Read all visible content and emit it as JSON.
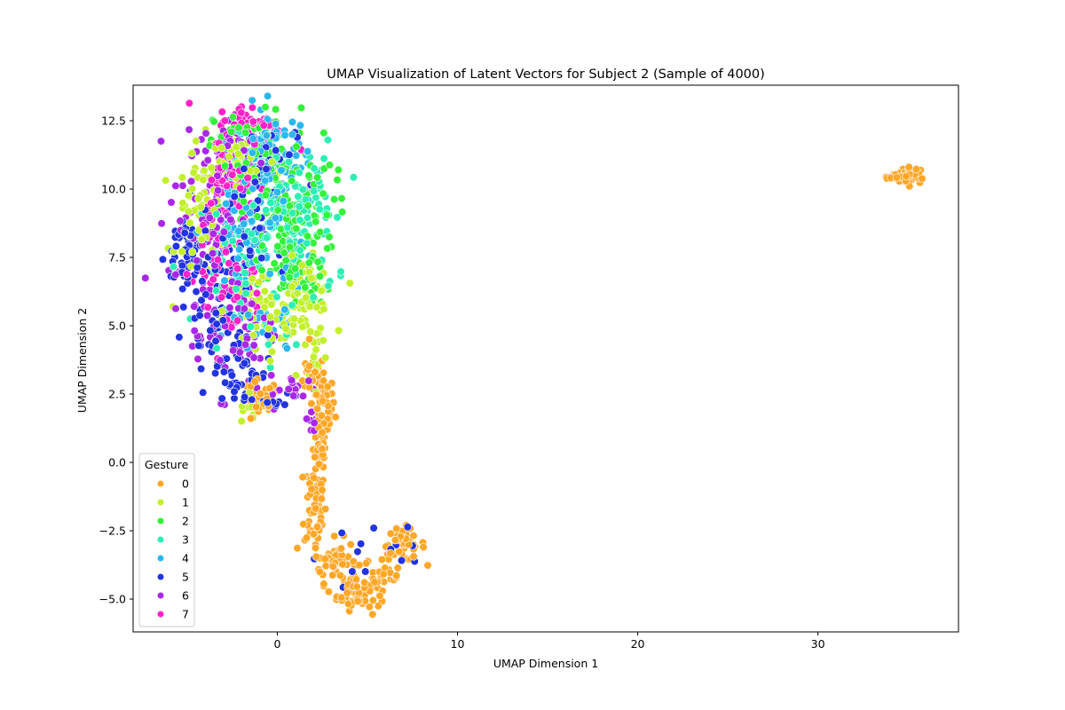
{
  "chart_data": {
    "type": "scatter",
    "title": "UMAP Visualization of Latent Vectors for Subject 2 (Sample of 4000)",
    "xlabel": "UMAP Dimension 1",
    "ylabel": "UMAP Dimension 2",
    "xlim": [
      -8,
      37.8
    ],
    "ylim": [
      -6.2,
      13.8
    ],
    "xticks": [
      0,
      10,
      20,
      30
    ],
    "yticks": [
      -5.0,
      -2.5,
      0.0,
      2.5,
      5.0,
      7.5,
      10.0,
      12.5
    ],
    "xtick_labels": [
      "0",
      "10",
      "20",
      "30"
    ],
    "ytick_labels": [
      "−5.0",
      "−2.5",
      "0.0",
      "2.5",
      "5.0",
      "7.5",
      "10.0",
      "12.5"
    ],
    "grid": false,
    "legend": {
      "title": "Gesture",
      "placement": "lower-left"
    },
    "series": [
      {
        "name": "0",
        "color": "#ffa726",
        "clusters": [
          {
            "cx": 35.2,
            "cy": 10.5,
            "sx": 0.4,
            "sy": 0.15,
            "n": 40
          },
          {
            "cx": 34.3,
            "cy": 10.45,
            "sx": 0.3,
            "sy": 0.08,
            "n": 10
          },
          {
            "cx": 2.5,
            "cy": 2.0,
            "sx": 0.35,
            "sy": 0.6,
            "n": 50
          },
          {
            "cx": 2.1,
            "cy": -1.5,
            "sx": 0.3,
            "sy": 0.9,
            "n": 60
          },
          {
            "cx": 3.2,
            "cy": -3.6,
            "sx": 0.6,
            "sy": 0.4,
            "n": 50
          },
          {
            "cx": 4.3,
            "cy": -4.8,
            "sx": 0.5,
            "sy": 0.3,
            "n": 50
          },
          {
            "cx": 5.8,
            "cy": -4.2,
            "sx": 0.5,
            "sy": 0.4,
            "n": 30
          },
          {
            "cx": 7.0,
            "cy": -3.0,
            "sx": 0.6,
            "sy": 0.3,
            "n": 45
          },
          {
            "cx": 2.4,
            "cy": 0.5,
            "sx": 0.2,
            "sy": 0.5,
            "n": 25
          },
          {
            "cx": 2.0,
            "cy": 3.2,
            "sx": 0.5,
            "sy": 0.4,
            "n": 20
          },
          {
            "cx": -1.0,
            "cy": 2.2,
            "sx": 0.5,
            "sy": 0.4,
            "n": 25
          }
        ]
      },
      {
        "name": "1",
        "color": "#c2f02a",
        "clusters": [
          {
            "cx": -4.2,
            "cy": 9.0,
            "sx": 0.7,
            "sy": 1.3,
            "n": 70
          },
          {
            "cx": 1.5,
            "cy": 6.0,
            "sx": 0.8,
            "sy": 0.7,
            "n": 80
          },
          {
            "cx": -1.0,
            "cy": 5.5,
            "sx": 1.0,
            "sy": 0.8,
            "n": 50
          },
          {
            "cx": -2.0,
            "cy": 11.0,
            "sx": 1.0,
            "sy": 0.6,
            "n": 40
          },
          {
            "cx": 2.2,
            "cy": 4.0,
            "sx": 0.3,
            "sy": 0.5,
            "n": 15
          },
          {
            "cx": -1.5,
            "cy": 2.0,
            "sx": 0.4,
            "sy": 0.3,
            "n": 15
          }
        ]
      },
      {
        "name": "2",
        "color": "#33f23a",
        "clusters": [
          {
            "cx": 0.5,
            "cy": 9.0,
            "sx": 1.3,
            "sy": 1.7,
            "n": 150
          },
          {
            "cx": -1.5,
            "cy": 11.5,
            "sx": 1.0,
            "sy": 0.7,
            "n": 50
          },
          {
            "cx": 1.0,
            "cy": 7.0,
            "sx": 0.8,
            "sy": 0.7,
            "n": 40
          }
        ]
      },
      {
        "name": "3",
        "color": "#2bf0b4",
        "clusters": [
          {
            "cx": 0.3,
            "cy": 8.5,
            "sx": 1.5,
            "sy": 1.6,
            "n": 130
          },
          {
            "cx": -2.0,
            "cy": 7.0,
            "sx": 1.0,
            "sy": 1.0,
            "n": 40
          },
          {
            "cx": 1.5,
            "cy": 9.5,
            "sx": 0.7,
            "sy": 0.5,
            "n": 30
          }
        ]
      },
      {
        "name": "4",
        "color": "#2bb8f0",
        "clusters": [
          {
            "cx": -0.3,
            "cy": 11.0,
            "sx": 1.0,
            "sy": 1.0,
            "n": 90
          },
          {
            "cx": -1.5,
            "cy": 8.5,
            "sx": 1.2,
            "sy": 1.3,
            "n": 70
          },
          {
            "cx": -0.5,
            "cy": 5.0,
            "sx": 1.0,
            "sy": 0.6,
            "n": 25
          }
        ]
      },
      {
        "name": "5",
        "color": "#2233e0",
        "clusters": [
          {
            "cx": -5.0,
            "cy": 7.6,
            "sx": 0.6,
            "sy": 0.9,
            "n": 60
          },
          {
            "cx": -3.5,
            "cy": 5.5,
            "sx": 0.8,
            "sy": 1.0,
            "n": 50
          },
          {
            "cx": -2.0,
            "cy": 3.5,
            "sx": 0.8,
            "sy": 0.8,
            "n": 50
          },
          {
            "cx": -1.0,
            "cy": 10.5,
            "sx": 1.0,
            "sy": 1.3,
            "n": 50
          },
          {
            "cx": -2.5,
            "cy": 8.0,
            "sx": 1.0,
            "sy": 1.0,
            "n": 40
          },
          {
            "cx": 0.2,
            "cy": 2.3,
            "sx": 0.4,
            "sy": 0.2,
            "n": 10
          },
          {
            "cx": 3.5,
            "cy": -3.8,
            "sx": 0.8,
            "sy": 0.6,
            "n": 10
          },
          {
            "cx": 6.9,
            "cy": -3.2,
            "sx": 0.6,
            "sy": 0.5,
            "n": 8
          }
        ]
      },
      {
        "name": "6",
        "color": "#a928e8",
        "clusters": [
          {
            "cx": -4.0,
            "cy": 9.0,
            "sx": 1.0,
            "sy": 1.5,
            "n": 70
          },
          {
            "cx": -2.5,
            "cy": 5.0,
            "sx": 1.2,
            "sy": 1.2,
            "n": 70
          },
          {
            "cx": -2.2,
            "cy": 11.5,
            "sx": 1.0,
            "sy": 0.6,
            "n": 40
          },
          {
            "cx": 1.0,
            "cy": 2.6,
            "sx": 0.7,
            "sy": 0.3,
            "n": 20
          },
          {
            "cx": 2.0,
            "cy": 1.5,
            "sx": 0.3,
            "sy": 0.3,
            "n": 8
          }
        ]
      },
      {
        "name": "7",
        "color": "#ff22c8",
        "clusters": [
          {
            "cx": -1.5,
            "cy": 12.3,
            "sx": 1.0,
            "sy": 0.4,
            "n": 50
          },
          {
            "cx": -2.5,
            "cy": 10.5,
            "sx": 0.6,
            "sy": 0.6,
            "n": 40
          },
          {
            "cx": -2.7,
            "cy": 6.5,
            "sx": 1.0,
            "sy": 1.0,
            "n": 50
          },
          {
            "cx": -3.5,
            "cy": 9.0,
            "sx": 0.8,
            "sy": 1.0,
            "n": 25
          },
          {
            "cx": 4.2,
            "cy": -4.6,
            "sx": 0.1,
            "sy": 0.1,
            "n": 2
          },
          {
            "cx": 34.0,
            "cy": 10.5,
            "sx": 0.05,
            "sy": 0.05,
            "n": 1
          }
        ]
      }
    ]
  }
}
